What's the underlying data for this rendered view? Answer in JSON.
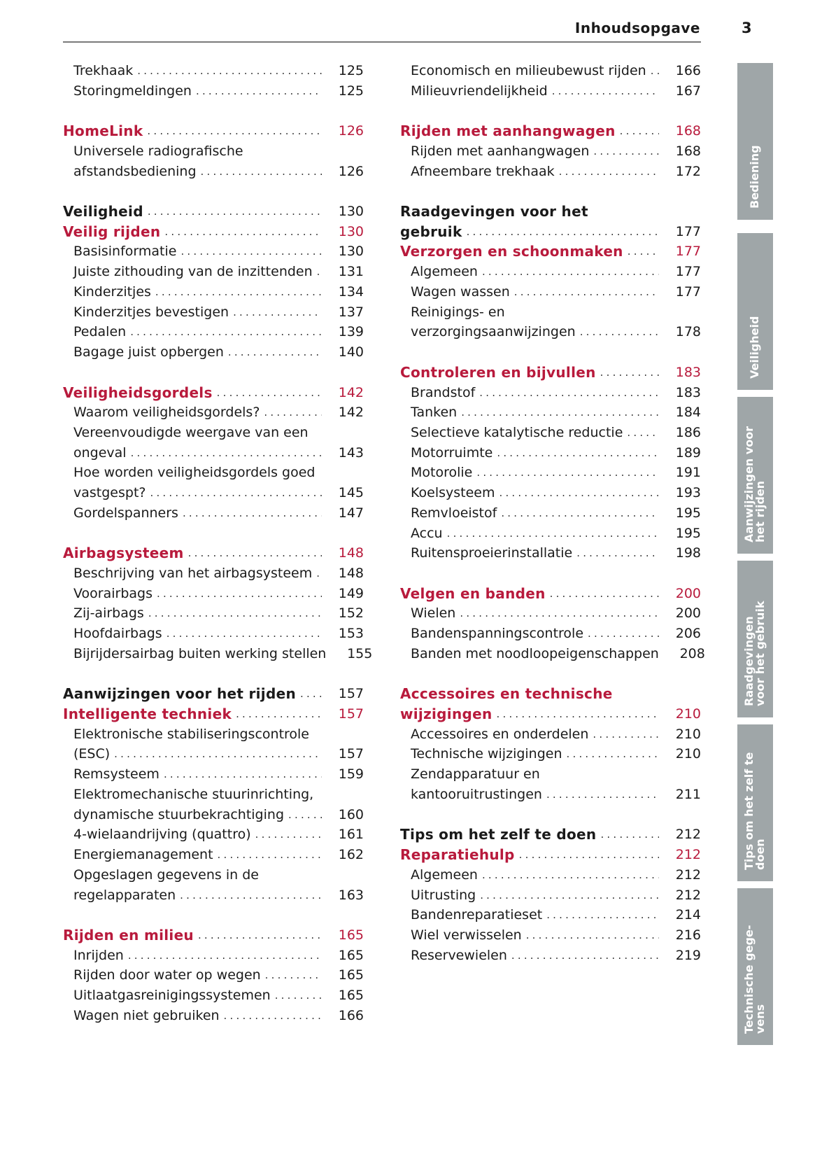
{
  "header": {
    "title": "Inhoudsopgave",
    "page_number": "3"
  },
  "colors": {
    "heading_red": "#b81a3c",
    "tab_gray": "#9fa6a8"
  },
  "left_column": [
    {
      "k": "sub",
      "t": "Trekhaak",
      "p": "125"
    },
    {
      "k": "sub",
      "t": "Storingmeldingen",
      "p": "125"
    },
    {
      "k": "blank"
    },
    {
      "k": "red",
      "t": "HomeLink",
      "p": "126"
    },
    {
      "k": "sub",
      "t": "Universele radiografische"
    },
    {
      "k": "sub",
      "t": "afstandsbediening",
      "p": "126"
    },
    {
      "k": "blank"
    },
    {
      "k": "black",
      "t": "Veiligheid",
      "p": "130"
    },
    {
      "k": "red",
      "t": "Veilig rijden",
      "p": "130"
    },
    {
      "k": "sub",
      "t": "Basisinformatie",
      "p": "130"
    },
    {
      "k": "sub",
      "t": "Juiste zithouding van de inzittenden",
      "p": "131"
    },
    {
      "k": "sub",
      "t": "Kinderzitjes",
      "p": "134"
    },
    {
      "k": "sub",
      "t": "Kinderzitjes bevestigen",
      "p": "137"
    },
    {
      "k": "sub",
      "t": "Pedalen",
      "p": "139"
    },
    {
      "k": "sub",
      "t": "Bagage juist opbergen",
      "p": "140"
    },
    {
      "k": "blank"
    },
    {
      "k": "red",
      "t": "Veiligheidsgordels",
      "p": "142"
    },
    {
      "k": "sub",
      "t": "Waarom veiligheidsgordels?",
      "p": "142"
    },
    {
      "k": "sub",
      "t": "Vereenvoudigde weergave van een"
    },
    {
      "k": "sub",
      "t": "ongeval",
      "p": "143"
    },
    {
      "k": "sub",
      "t": "Hoe worden veiligheidsgordels goed"
    },
    {
      "k": "sub",
      "t": "vastgespt?",
      "p": "145"
    },
    {
      "k": "sub",
      "t": "Gordelspanners",
      "p": "147"
    },
    {
      "k": "blank"
    },
    {
      "k": "red",
      "t": "Airbagsysteem",
      "p": "148"
    },
    {
      "k": "sub",
      "t": "Beschrijving van het airbagsysteem",
      "p": "148"
    },
    {
      "k": "sub",
      "t": "Voorairbags",
      "p": "149"
    },
    {
      "k": "sub",
      "t": "Zij-airbags",
      "p": "152"
    },
    {
      "k": "sub",
      "t": "Hoofdairbags",
      "p": "153"
    },
    {
      "k": "sub",
      "t": "Bijrijdersairbag buiten werking stellen",
      "p": "155"
    },
    {
      "k": "blank"
    },
    {
      "k": "black",
      "t": "Aanwijzingen voor het rijden",
      "p": "157"
    },
    {
      "k": "red",
      "t": "Intelligente techniek",
      "p": "157"
    },
    {
      "k": "sub",
      "t": "Elektronische stabiliseringscontrole"
    },
    {
      "k": "sub",
      "t": "(ESC)",
      "p": "157"
    },
    {
      "k": "sub",
      "t": "Remsysteem",
      "p": "159"
    },
    {
      "k": "sub",
      "t": "Elektromechanische stuurinrichting,"
    },
    {
      "k": "sub",
      "t": "dynamische stuurbekrachtiging",
      "p": "160"
    },
    {
      "k": "sub",
      "t": "4-wielaandrijving (quattro)",
      "p": "161"
    },
    {
      "k": "sub",
      "t": "Energiemanagement",
      "p": "162"
    },
    {
      "k": "sub",
      "t": "Opgeslagen gegevens in de"
    },
    {
      "k": "sub",
      "t": "regelapparaten",
      "p": "163"
    },
    {
      "k": "blank"
    },
    {
      "k": "red",
      "t": "Rijden en milieu",
      "p": "165"
    },
    {
      "k": "sub",
      "t": "Inrijden",
      "p": "165"
    },
    {
      "k": "sub",
      "t": "Rijden door water op wegen",
      "p": "165"
    },
    {
      "k": "sub",
      "t": "Uitlaatgasreinigingssystemen",
      "p": "165"
    },
    {
      "k": "sub",
      "t": "Wagen niet gebruiken",
      "p": "166"
    }
  ],
  "right_column": [
    {
      "k": "sub",
      "t": "Economisch en milieubewust rijden",
      "p": "166"
    },
    {
      "k": "sub",
      "t": "Milieuvriendelijkheid",
      "p": "167"
    },
    {
      "k": "blank"
    },
    {
      "k": "red",
      "t": "Rijden met aanhangwagen",
      "p": "168"
    },
    {
      "k": "sub",
      "t": "Rijden met aanhangwagen",
      "p": "168"
    },
    {
      "k": "sub",
      "t": "Afneembare trekhaak",
      "p": "172"
    },
    {
      "k": "blank"
    },
    {
      "k": "black",
      "t": "Raadgevingen voor het"
    },
    {
      "k": "black",
      "t": "gebruik",
      "p": "177"
    },
    {
      "k": "red",
      "t": "Verzorgen en schoonmaken",
      "p": "177"
    },
    {
      "k": "sub",
      "t": "Algemeen",
      "p": "177"
    },
    {
      "k": "sub",
      "t": "Wagen wassen",
      "p": "177"
    },
    {
      "k": "sub",
      "t": "Reinigings- en"
    },
    {
      "k": "sub",
      "t": "verzorgingsaanwijzingen",
      "p": "178"
    },
    {
      "k": "blank"
    },
    {
      "k": "red",
      "t": "Controleren en bijvullen",
      "p": "183"
    },
    {
      "k": "sub",
      "t": "Brandstof",
      "p": "183"
    },
    {
      "k": "sub",
      "t": "Tanken",
      "p": "184"
    },
    {
      "k": "sub",
      "t": "Selectieve katalytische reductie",
      "p": "186"
    },
    {
      "k": "sub",
      "t": "Motorruimte",
      "p": "189"
    },
    {
      "k": "sub",
      "t": "Motorolie",
      "p": "191"
    },
    {
      "k": "sub",
      "t": "Koelsysteem",
      "p": "193"
    },
    {
      "k": "sub",
      "t": "Remvloeistof",
      "p": "195"
    },
    {
      "k": "sub",
      "t": "Accu",
      "p": "195"
    },
    {
      "k": "sub",
      "t": "Ruitensproeierinstallatie",
      "p": "198"
    },
    {
      "k": "blank"
    },
    {
      "k": "red",
      "t": "Velgen en banden",
      "p": "200"
    },
    {
      "k": "sub",
      "t": "Wielen",
      "p": "200"
    },
    {
      "k": "sub",
      "t": "Bandenspanningscontrole",
      "p": "206"
    },
    {
      "k": "sub",
      "t": "Banden met noodloopeigenschappen",
      "p": "208"
    },
    {
      "k": "blank"
    },
    {
      "k": "red",
      "t": "Accessoires en technische"
    },
    {
      "k": "red",
      "t": "wijzigingen",
      "p": "210"
    },
    {
      "k": "sub",
      "t": "Accessoires en onderdelen",
      "p": "210"
    },
    {
      "k": "sub",
      "t": "Technische wijzigingen",
      "p": "210"
    },
    {
      "k": "sub",
      "t": "Zendapparatuur en"
    },
    {
      "k": "sub",
      "t": "kantooruitrustingen",
      "p": "211"
    },
    {
      "k": "blank"
    },
    {
      "k": "black",
      "t": "Tips om het zelf te doen",
      "p": "212"
    },
    {
      "k": "red",
      "t": "Reparatiehulp",
      "p": "212"
    },
    {
      "k": "sub",
      "t": "Algemeen",
      "p": "212"
    },
    {
      "k": "sub",
      "t": "Uitrusting",
      "p": "212"
    },
    {
      "k": "sub",
      "t": "Bandenreparatieset",
      "p": "214"
    },
    {
      "k": "sub",
      "t": "Wiel verwisselen",
      "p": "216"
    },
    {
      "k": "sub",
      "t": "Reservewielen",
      "p": "219"
    }
  ],
  "side_tabs": [
    "Bediening",
    "Veiligheid",
    "Aanwijzingen voor\nhet rijden",
    "Raadgevingen\nvoor het gebruik",
    "Tips om het zelf te\ndoen",
    "Technische gege-\nvens"
  ]
}
